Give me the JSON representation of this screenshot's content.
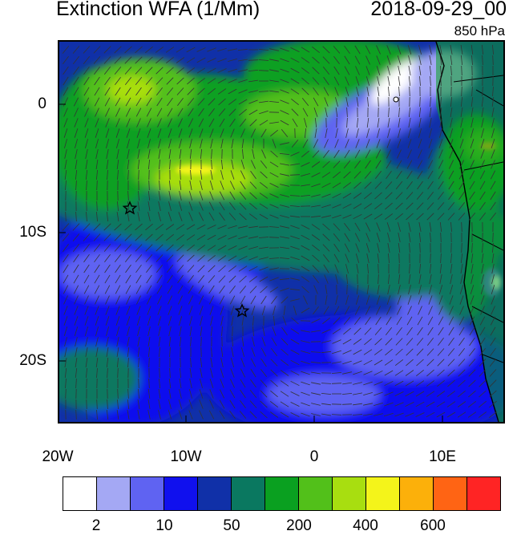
{
  "header": {
    "title": "Extinction WFA (1/Mm)",
    "datetime": "2018-09-29_00",
    "level": "850 hPa"
  },
  "axes": {
    "lat_ticks": [
      "0",
      "10S",
      "20S"
    ],
    "lon_ticks": [
      "20W",
      "10W",
      "0",
      "10E"
    ]
  },
  "markers": [
    {
      "name": "star-1",
      "lon": "14.5W",
      "lat": "8S"
    },
    {
      "name": "star-2",
      "lon": "5.7W",
      "lat": "16S"
    }
  ],
  "colorbar": {
    "colors": [
      "#ffffff",
      "#a4a8f4",
      "#5f63f2",
      "#1010ee",
      "#1030a8",
      "#0a7860",
      "#0aa020",
      "#52c01a",
      "#a8de10",
      "#f4f41a",
      "#fcb00a",
      "#ff6414",
      "#ff2424"
    ],
    "labels": [
      "2",
      "10",
      "50",
      "200",
      "400",
      "600"
    ]
  }
}
